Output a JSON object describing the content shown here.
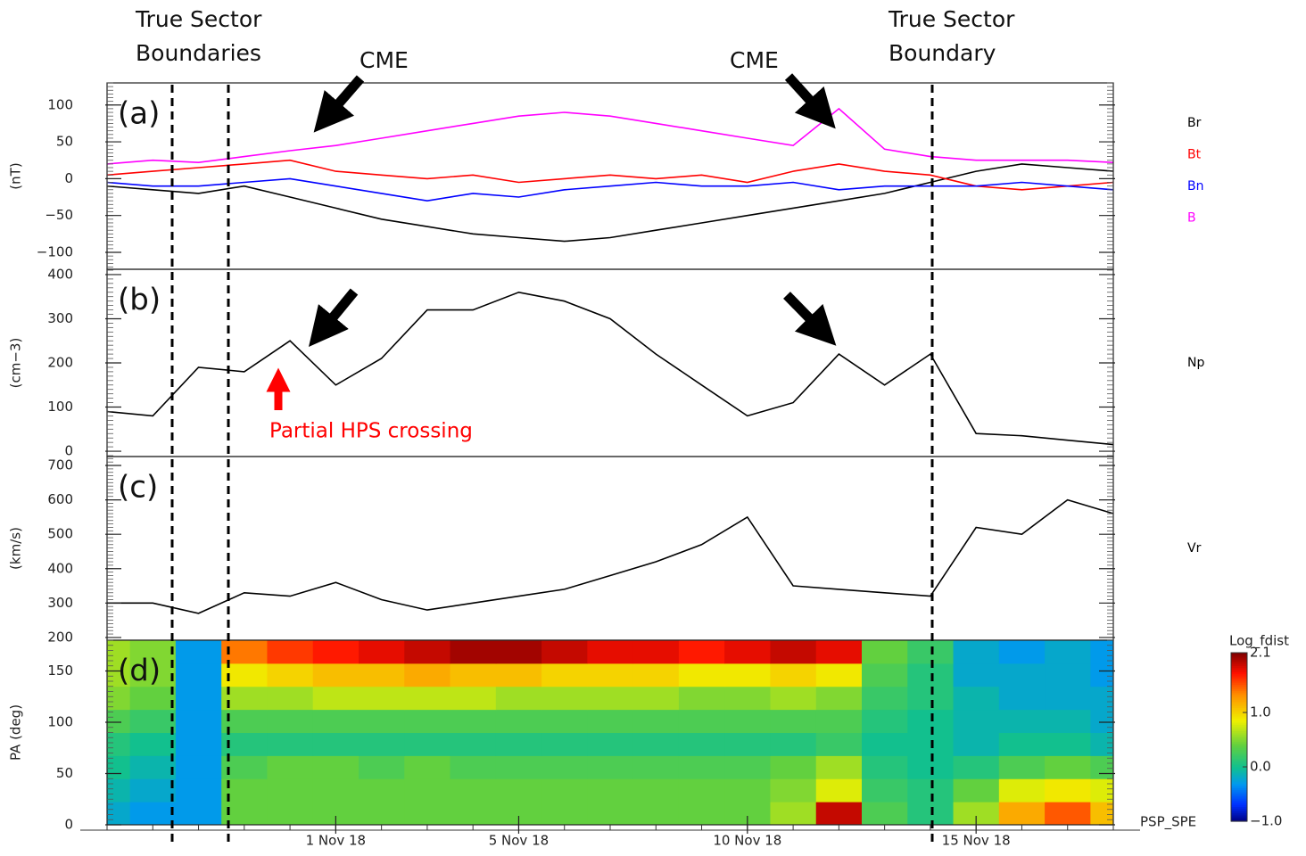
{
  "chart_data": {
    "type": "stacked-panels",
    "x": [
      "27 Oct 18",
      "28 Oct 18",
      "29 Oct 18",
      "30 Oct 18",
      "31 Oct 18",
      "1 Nov 18",
      "2 Nov 18",
      "3 Nov 18",
      "4 Nov 18",
      "5 Nov 18",
      "6 Nov 18",
      "7 Nov 18",
      "8 Nov 18",
      "9 Nov 18",
      "10 Nov 18",
      "11 Nov 18",
      "12 Nov 18",
      "13 Nov 18",
      "14 Nov 18",
      "15 Nov 18",
      "16 Nov 18",
      "17 Nov 18",
      "18 Nov 18"
    ],
    "xticks": [
      "1 Nov 18",
      "5 Nov 18",
      "10 Nov 18",
      "15 Nov 18"
    ],
    "panels": [
      {
        "type": "line",
        "label": "(a)",
        "ylabel": "(nT)",
        "ylim": [
          -123,
          130
        ],
        "yticks": [
          {
            "value": -100,
            "label": "−100"
          },
          {
            "value": -50,
            "label": "−50"
          },
          0,
          50,
          100
        ],
        "series": [
          {
            "name": "Br",
            "color": "#000000",
            "values": [
              -10,
              -15,
              -20,
              -10,
              -25,
              -40,
              -55,
              -65,
              -75,
              -80,
              -85,
              -80,
              -70,
              -60,
              -50,
              -40,
              -30,
              -20,
              -5,
              10,
              20,
              15,
              10
            ]
          },
          {
            "name": "Bt",
            "color": "#ff0000",
            "values": [
              5,
              10,
              15,
              20,
              25,
              10,
              5,
              0,
              5,
              -5,
              0,
              5,
              0,
              5,
              -5,
              10,
              20,
              10,
              5,
              -10,
              -15,
              -10,
              -5
            ]
          },
          {
            "name": "Bn",
            "color": "#0000ff",
            "values": [
              -5,
              -10,
              -10,
              -5,
              0,
              -10,
              -20,
              -30,
              -20,
              -25,
              -15,
              -10,
              -5,
              -10,
              -10,
              -5,
              -15,
              -10,
              -10,
              -10,
              -5,
              -10,
              -15
            ]
          },
          {
            "name": "B",
            "color": "#ff00ff",
            "values": [
              20,
              25,
              22,
              30,
              38,
              45,
              55,
              65,
              75,
              85,
              90,
              85,
              75,
              65,
              55,
              45,
              95,
              40,
              30,
              25,
              25,
              25,
              22
            ]
          }
        ]
      },
      {
        "type": "line",
        "label": "(b)",
        "ylabel": "(cm−3)",
        "ylim": [
          -12,
          412
        ],
        "yticks": [
          0,
          100,
          200,
          300,
          400
        ],
        "series": [
          {
            "name": "Np",
            "color": "#000000",
            "values": [
              90,
              80,
              190,
              180,
              250,
              150,
              210,
              320,
              320,
              360,
              340,
              300,
              220,
              150,
              80,
              110,
              220,
              150,
              220,
              40,
              35,
              25,
              15
            ]
          }
        ]
      },
      {
        "type": "line",
        "label": "(c)",
        "ylabel": "(km/s)",
        "ylim": [
          192,
          726
        ],
        "yticks": [
          200,
          300,
          400,
          500,
          600,
          700
        ],
        "series": [
          {
            "name": "Vr",
            "color": "#000000",
            "values": [
              300,
              300,
              270,
              330,
              320,
              360,
              310,
              280,
              300,
              320,
              340,
              380,
              420,
              470,
              550,
              350,
              340,
              330,
              320,
              520,
              500,
              600,
              560
            ]
          }
        ]
      },
      {
        "type": "heatmap",
        "label": "(d)",
        "ylabel": "PA (deg)",
        "ylim": [
          0,
          180
        ],
        "yticks": [
          0,
          50,
          100,
          150
        ],
        "bins": [
          0,
          22.5,
          45,
          67.5,
          90,
          112.5,
          135,
          157.5,
          180
        ],
        "values": [
          [
            -0.2,
            -0.3,
            -0.3,
            0.4,
            0.4,
            0.4,
            0.4,
            0.4,
            0.4,
            0.4,
            0.4,
            0.4,
            0.4,
            0.4,
            0.4,
            0.6,
            1.9,
            0.3,
            0.1,
            0.6,
            1.2,
            1.5,
            1.1
          ],
          [
            -0.1,
            -0.2,
            -0.3,
            0.4,
            0.4,
            0.4,
            0.4,
            0.4,
            0.4,
            0.4,
            0.4,
            0.4,
            0.4,
            0.4,
            0.4,
            0.5,
            0.8,
            0.2,
            0.1,
            0.4,
            0.8,
            0.9,
            0.8
          ],
          [
            0.0,
            -0.1,
            -0.3,
            0.3,
            0.4,
            0.4,
            0.3,
            0.4,
            0.3,
            0.3,
            0.3,
            0.3,
            0.3,
            0.3,
            0.3,
            0.4,
            0.6,
            0.1,
            0.0,
            0.1,
            0.3,
            0.4,
            0.3
          ],
          [
            0.1,
            0.0,
            -0.3,
            0.1,
            0.1,
            0.1,
            0.1,
            0.1,
            0.1,
            0.1,
            0.1,
            0.1,
            0.1,
            0.1,
            0.1,
            0.1,
            0.2,
            0.0,
            0.0,
            -0.1,
            0.0,
            0.0,
            -0.1
          ],
          [
            0.3,
            0.2,
            -0.3,
            0.3,
            0.3,
            0.3,
            0.3,
            0.3,
            0.3,
            0.3,
            0.3,
            0.3,
            0.3,
            0.3,
            0.3,
            0.3,
            0.3,
            0.1,
            0.0,
            -0.1,
            -0.1,
            -0.1,
            -0.2
          ],
          [
            0.5,
            0.4,
            -0.3,
            0.6,
            0.6,
            0.7,
            0.7,
            0.7,
            0.7,
            0.6,
            0.6,
            0.6,
            0.6,
            0.5,
            0.5,
            0.6,
            0.5,
            0.2,
            0.1,
            -0.1,
            -0.2,
            -0.2,
            -0.2
          ],
          [
            0.6,
            0.5,
            -0.3,
            0.9,
            1.0,
            1.1,
            1.1,
            1.2,
            1.1,
            1.1,
            1.0,
            1.0,
            1.0,
            0.9,
            0.9,
            1.0,
            0.9,
            0.3,
            0.1,
            -0.2,
            -0.2,
            -0.2,
            -0.3
          ],
          [
            0.6,
            0.5,
            -0.3,
            1.4,
            1.6,
            1.7,
            1.8,
            1.9,
            2.0,
            2.0,
            1.9,
            1.8,
            1.8,
            1.7,
            1.8,
            1.9,
            1.8,
            0.4,
            0.2,
            -0.2,
            -0.3,
            -0.2,
            -0.3
          ]
        ],
        "zlim": [
          -1,
          2.1
        ],
        "zticks": [
          2.1,
          {
            "value": 1,
            "label": "1.0"
          },
          {
            "value": 0,
            "label": "0.0"
          },
          {
            "value": -1,
            "label": "−1.0"
          }
        ],
        "zlabel": "Log_fdist",
        "instrument": "PSP_SPE"
      }
    ]
  },
  "annotations": [
    "True Sector",
    "Boundaries",
    "CME",
    "CME",
    "True Sector",
    "Boundary",
    "Partial HPS crossing"
  ]
}
